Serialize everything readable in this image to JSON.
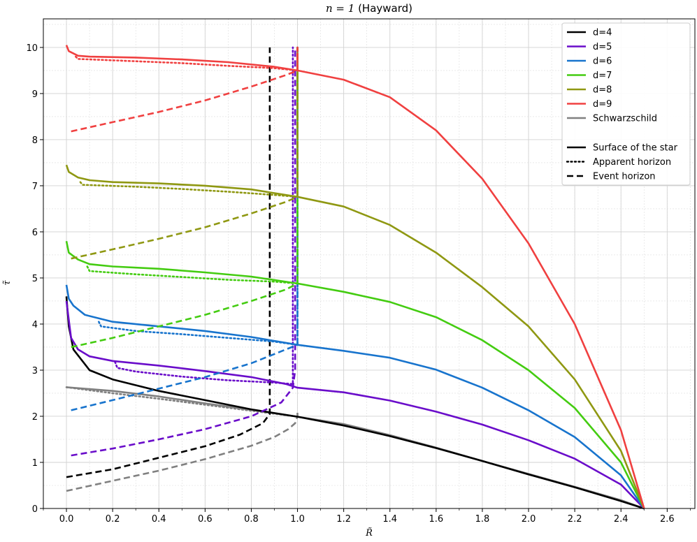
{
  "chart_data": {
    "type": "line",
    "title_math": "n = 1",
    "title_text": " (Hayward)",
    "xlabel": "R̃",
    "ylabel": "τ̃",
    "xlim": [
      -0.1,
      2.72
    ],
    "ylim": [
      0,
      10.62
    ],
    "xticks": [
      "0.0",
      "0.2",
      "0.4",
      "0.6",
      "0.8",
      "1.0",
      "1.2",
      "1.4",
      "1.6",
      "1.8",
      "2.0",
      "2.2",
      "2.4",
      "2.6"
    ],
    "yticks": [
      "0",
      "1",
      "2",
      "3",
      "4",
      "5",
      "6",
      "7",
      "8",
      "9",
      "10"
    ],
    "grid": true,
    "legend": {
      "placement": "top-right",
      "dimension_entries": [
        {
          "label": "d=4",
          "color": "#000000"
        },
        {
          "label": "d=5",
          "color": "#6a0dca"
        },
        {
          "label": "d=6",
          "color": "#1874cd"
        },
        {
          "label": "d=7",
          "color": "#44cc11"
        },
        {
          "label": "d=8",
          "color": "#8f9812"
        },
        {
          "label": "d=9",
          "color": "#f04040"
        },
        {
          "label": "Schwarzschild",
          "color": "#808080"
        }
      ],
      "style_entries": [
        {
          "label": "Surface of the star",
          "style": "solid"
        },
        {
          "label": "Apparent horizon",
          "style": "dotted"
        },
        {
          "label": "Event horizon",
          "style": "dashed"
        }
      ]
    },
    "series": [
      {
        "color": "#808080",
        "surface": [
          [
            0,
            2.63
          ],
          [
            0.2,
            2.55
          ],
          [
            0.4,
            2.43
          ],
          [
            0.6,
            2.28
          ],
          [
            0.8,
            2.14
          ],
          [
            1.0,
            1.99
          ],
          [
            1.2,
            1.83
          ],
          [
            1.4,
            1.59
          ],
          [
            1.6,
            1.32
          ],
          [
            1.8,
            1.03
          ],
          [
            2.0,
            0.75
          ],
          [
            2.2,
            0.47
          ],
          [
            2.4,
            0.18
          ],
          [
            2.5,
            0
          ]
        ],
        "apparent": [
          [
            0,
            2.63
          ],
          [
            0.2,
            2.5
          ],
          [
            0.4,
            2.38
          ],
          [
            0.6,
            2.25
          ],
          [
            0.8,
            2.12
          ],
          [
            1.0,
            1.99
          ]
        ],
        "event": [
          [
            0,
            0.38
          ],
          [
            0.2,
            0.6
          ],
          [
            0.4,
            0.82
          ],
          [
            0.6,
            1.07
          ],
          [
            0.8,
            1.36
          ],
          [
            0.9,
            1.55
          ],
          [
            0.96,
            1.72
          ],
          [
            0.99,
            1.85
          ],
          [
            1.0,
            2.0
          ],
          [
            1.0,
            2.15
          ]
        ]
      },
      {
        "color": "#000000",
        "surface": [
          [
            0,
            4.6
          ],
          [
            0.01,
            3.95
          ],
          [
            0.03,
            3.45
          ],
          [
            0.1,
            3.0
          ],
          [
            0.2,
            2.8
          ],
          [
            0.4,
            2.55
          ],
          [
            0.6,
            2.35
          ],
          [
            0.8,
            2.15
          ],
          [
            1.0,
            1.99
          ],
          [
            1.2,
            1.8
          ],
          [
            1.4,
            1.57
          ],
          [
            1.6,
            1.31
          ],
          [
            1.8,
            1.03
          ],
          [
            2.0,
            0.74
          ],
          [
            2.2,
            0.46
          ],
          [
            2.4,
            0.16
          ],
          [
            2.5,
            0
          ]
        ],
        "apparent": [],
        "event": [
          [
            0,
            0.68
          ],
          [
            0.2,
            0.85
          ],
          [
            0.4,
            1.1
          ],
          [
            0.6,
            1.35
          ],
          [
            0.75,
            1.6
          ],
          [
            0.85,
            1.85
          ],
          [
            0.88,
            2.05
          ],
          [
            0.88,
            2.5
          ],
          [
            0.88,
            4
          ],
          [
            0.88,
            7
          ],
          [
            0.88,
            10
          ]
        ]
      },
      {
        "color": "#6a0dca",
        "surface": [
          [
            0,
            4.5
          ],
          [
            0.02,
            3.7
          ],
          [
            0.05,
            3.45
          ],
          [
            0.1,
            3.3
          ],
          [
            0.2,
            3.2
          ],
          [
            0.4,
            3.1
          ],
          [
            0.6,
            2.98
          ],
          [
            0.8,
            2.85
          ],
          [
            0.95,
            2.7
          ],
          [
            1.0,
            2.62
          ],
          [
            1.2,
            2.52
          ],
          [
            1.4,
            2.34
          ],
          [
            1.6,
            2.1
          ],
          [
            1.8,
            1.82
          ],
          [
            2.0,
            1.48
          ],
          [
            2.2,
            1.08
          ],
          [
            2.4,
            0.52
          ],
          [
            2.5,
            0
          ]
        ],
        "apparent": [
          [
            0.21,
            3.18
          ],
          [
            0.22,
            3.05
          ],
          [
            0.3,
            2.97
          ],
          [
            0.5,
            2.86
          ],
          [
            0.7,
            2.78
          ],
          [
            0.9,
            2.73
          ],
          [
            0.98,
            2.7
          ],
          [
            0.98,
            3.5
          ],
          [
            0.98,
            6
          ],
          [
            0.98,
            10
          ]
        ],
        "event": [
          [
            0.02,
            1.15
          ],
          [
            0.2,
            1.3
          ],
          [
            0.4,
            1.5
          ],
          [
            0.6,
            1.72
          ],
          [
            0.8,
            2.0
          ],
          [
            0.93,
            2.3
          ],
          [
            0.98,
            2.62
          ],
          [
            0.99,
            3
          ],
          [
            0.99,
            6
          ],
          [
            0.99,
            10
          ]
        ]
      },
      {
        "color": "#1874cd",
        "surface": [
          [
            0,
            4.85
          ],
          [
            0.01,
            4.55
          ],
          [
            0.03,
            4.4
          ],
          [
            0.08,
            4.2
          ],
          [
            0.2,
            4.05
          ],
          [
            0.4,
            3.95
          ],
          [
            0.6,
            3.85
          ],
          [
            0.8,
            3.72
          ],
          [
            1.0,
            3.55
          ],
          [
            1.2,
            3.42
          ],
          [
            1.4,
            3.27
          ],
          [
            1.6,
            3.01
          ],
          [
            1.8,
            2.62
          ],
          [
            2.0,
            2.13
          ],
          [
            2.2,
            1.55
          ],
          [
            2.4,
            0.72
          ],
          [
            2.5,
            0
          ]
        ],
        "apparent": [
          [
            0.14,
            4.05
          ],
          [
            0.15,
            3.95
          ],
          [
            0.3,
            3.85
          ],
          [
            0.5,
            3.78
          ],
          [
            0.7,
            3.7
          ],
          [
            0.9,
            3.62
          ],
          [
            1.0,
            3.55
          ],
          [
            1.0,
            4.5
          ],
          [
            1.0,
            7
          ],
          [
            1.0,
            10
          ]
        ],
        "event": [
          [
            0.02,
            2.13
          ],
          [
            0.2,
            2.35
          ],
          [
            0.4,
            2.6
          ],
          [
            0.6,
            2.85
          ],
          [
            0.8,
            3.15
          ],
          [
            0.95,
            3.45
          ],
          [
            1.0,
            3.55
          ],
          [
            1.0,
            4.5
          ],
          [
            1.0,
            7
          ],
          [
            1.0,
            10
          ]
        ]
      },
      {
        "color": "#44cc11",
        "surface": [
          [
            0,
            5.8
          ],
          [
            0.01,
            5.55
          ],
          [
            0.05,
            5.4
          ],
          [
            0.1,
            5.3
          ],
          [
            0.2,
            5.25
          ],
          [
            0.4,
            5.2
          ],
          [
            0.6,
            5.12
          ],
          [
            0.8,
            5.03
          ],
          [
            1.0,
            4.88
          ],
          [
            1.2,
            4.7
          ],
          [
            1.4,
            4.48
          ],
          [
            1.6,
            4.15
          ],
          [
            1.8,
            3.65
          ],
          [
            2.0,
            3.0
          ],
          [
            2.2,
            2.18
          ],
          [
            2.4,
            1.0
          ],
          [
            2.5,
            0
          ]
        ],
        "apparent": [
          [
            0.09,
            5.25
          ],
          [
            0.1,
            5.15
          ],
          [
            0.3,
            5.08
          ],
          [
            0.5,
            5.02
          ],
          [
            0.7,
            4.96
          ],
          [
            0.9,
            4.92
          ],
          [
            1.0,
            4.88
          ],
          [
            1.0,
            6
          ],
          [
            1.0,
            8
          ],
          [
            1.0,
            10
          ]
        ],
        "event": [
          [
            0.02,
            3.5
          ],
          [
            0.2,
            3.7
          ],
          [
            0.4,
            3.95
          ],
          [
            0.6,
            4.2
          ],
          [
            0.8,
            4.5
          ],
          [
            0.95,
            4.75
          ],
          [
            1.0,
            4.88
          ],
          [
            1.0,
            6
          ],
          [
            1.0,
            8
          ],
          [
            1.0,
            10
          ]
        ]
      },
      {
        "color": "#8f9812",
        "surface": [
          [
            0,
            7.45
          ],
          [
            0.01,
            7.3
          ],
          [
            0.05,
            7.18
          ],
          [
            0.1,
            7.12
          ],
          [
            0.2,
            7.08
          ],
          [
            0.4,
            7.05
          ],
          [
            0.6,
            7.0
          ],
          [
            0.8,
            6.92
          ],
          [
            1.0,
            6.76
          ],
          [
            1.2,
            6.55
          ],
          [
            1.4,
            6.15
          ],
          [
            1.6,
            5.55
          ],
          [
            1.8,
            4.8
          ],
          [
            2.0,
            3.95
          ],
          [
            2.2,
            2.8
          ],
          [
            2.4,
            1.25
          ],
          [
            2.5,
            0
          ]
        ],
        "apparent": [
          [
            0.06,
            7.08
          ],
          [
            0.07,
            7.02
          ],
          [
            0.3,
            6.98
          ],
          [
            0.5,
            6.93
          ],
          [
            0.7,
            6.87
          ],
          [
            0.9,
            6.8
          ],
          [
            1.0,
            6.76
          ],
          [
            1.0,
            8
          ],
          [
            1.0,
            10
          ]
        ],
        "event": [
          [
            0.02,
            5.42
          ],
          [
            0.2,
            5.62
          ],
          [
            0.4,
            5.85
          ],
          [
            0.6,
            6.1
          ],
          [
            0.8,
            6.4
          ],
          [
            0.95,
            6.65
          ],
          [
            1.0,
            6.76
          ],
          [
            1.0,
            8
          ],
          [
            1.0,
            10
          ]
        ]
      },
      {
        "color": "#f04040",
        "surface": [
          [
            0,
            10.05
          ],
          [
            0.01,
            9.92
          ],
          [
            0.05,
            9.82
          ],
          [
            0.1,
            9.8
          ],
          [
            0.3,
            9.78
          ],
          [
            0.5,
            9.74
          ],
          [
            0.7,
            9.68
          ],
          [
            0.9,
            9.58
          ],
          [
            1.0,
            9.5
          ],
          [
            1.2,
            9.3
          ],
          [
            1.4,
            8.92
          ],
          [
            1.6,
            8.2
          ],
          [
            1.8,
            7.15
          ],
          [
            2.0,
            5.75
          ],
          [
            2.2,
            4.0
          ],
          [
            2.4,
            1.7
          ],
          [
            2.5,
            0
          ]
        ],
        "apparent": [
          [
            0.04,
            9.8
          ],
          [
            0.05,
            9.75
          ],
          [
            0.3,
            9.7
          ],
          [
            0.5,
            9.66
          ],
          [
            0.7,
            9.6
          ],
          [
            0.9,
            9.55
          ],
          [
            1.0,
            9.5
          ],
          [
            1.0,
            10
          ]
        ],
        "event": [
          [
            0.02,
            8.18
          ],
          [
            0.2,
            8.38
          ],
          [
            0.4,
            8.6
          ],
          [
            0.6,
            8.85
          ],
          [
            0.8,
            9.15
          ],
          [
            0.95,
            9.4
          ],
          [
            1.0,
            9.5
          ],
          [
            1.0,
            10
          ]
        ]
      }
    ]
  }
}
